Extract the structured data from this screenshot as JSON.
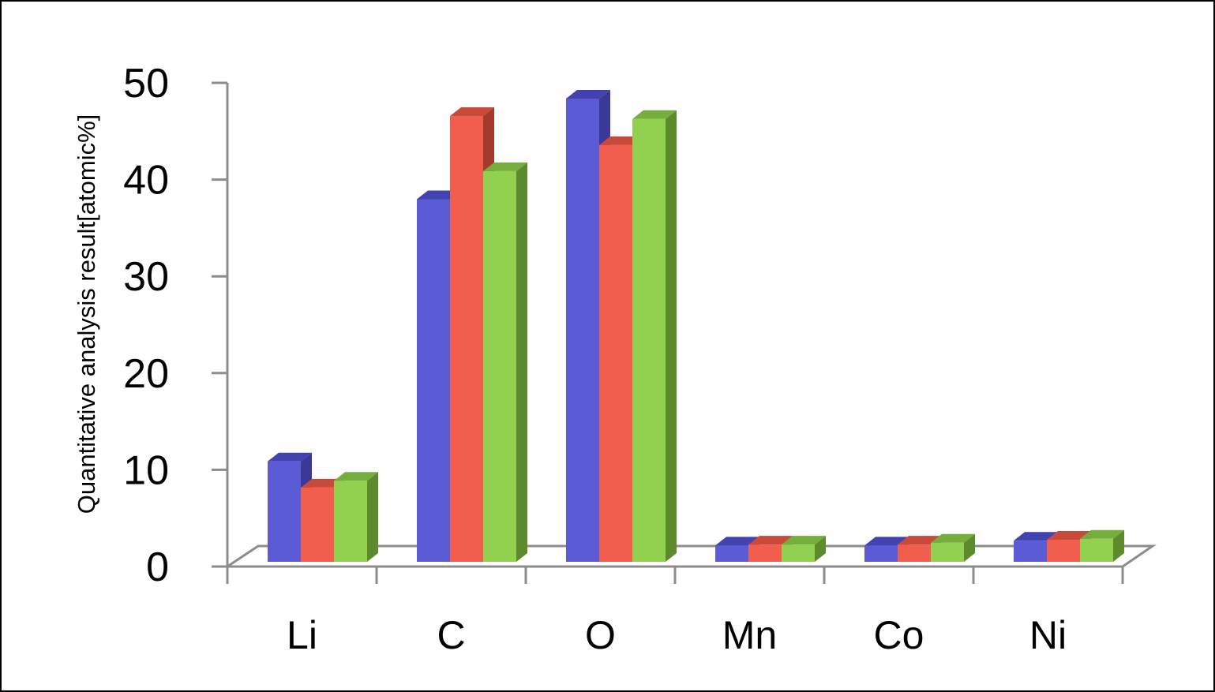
{
  "chart_data": {
    "type": "bar",
    "title": "",
    "xlabel": "",
    "ylabel": "Quantitative analysis  result[atomic%]",
    "ylim": [
      0,
      50
    ],
    "yticks": [
      0,
      10,
      20,
      30,
      40,
      50
    ],
    "categories": [
      "Li",
      "C",
      "O",
      "Mn",
      "Co",
      "Ni"
    ],
    "series": [
      {
        "values": [
          10.3,
          37.4,
          47.8,
          1.6,
          1.6,
          2.1
        ]
      },
      {
        "values": [
          7.6,
          46.0,
          43.0,
          1.7,
          1.7,
          2.2
        ]
      },
      {
        "values": [
          8.3,
          40.3,
          45.7,
          1.7,
          1.9,
          2.3
        ]
      }
    ],
    "colors": {
      "series": [
        "#5B5BD6",
        "#F25E4D",
        "#92D050"
      ],
      "side": [
        "#3A3A96",
        "#A23A2E",
        "#5E8A2E"
      ],
      "top": [
        "#4242B0",
        "#C9493B",
        "#76AE3C"
      ],
      "axis": "#8C8C8C"
    },
    "grid": false,
    "legend": "none",
    "style": "3d-clustered-column"
  }
}
